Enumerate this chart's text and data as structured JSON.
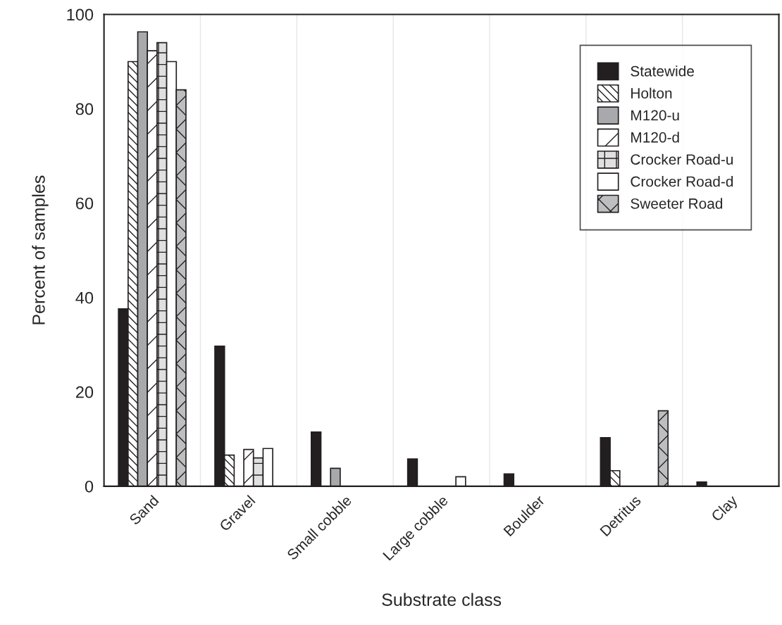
{
  "chart_data": {
    "type": "bar",
    "xlabel": "Substrate class",
    "ylabel": "Percent of samples",
    "categories": [
      "Sand",
      "Gravel",
      "Small cobble",
      "Large cobble",
      "Boulder",
      "Detritus",
      "Clay"
    ],
    "series": [
      {
        "name": "Statewide",
        "color": "#231f20",
        "values": [
          37.6,
          29.7,
          11.5,
          5.8,
          2.6,
          10.3,
          0.9
        ]
      },
      {
        "name": "Holton",
        "color": "#ffffff",
        "values": [
          90,
          6.6,
          null,
          null,
          null,
          3.3,
          null
        ]
      },
      {
        "name": "M120-u",
        "color": "#a7a9ac",
        "values": [
          96.3,
          null,
          3.8,
          null,
          null,
          null,
          null
        ]
      },
      {
        "name": "M120-d",
        "color": "#ffffff",
        "values": [
          92.3,
          7.8,
          null,
          null,
          null,
          null,
          null
        ]
      },
      {
        "name": "Crocker Road-u",
        "color": "#e0e0e0",
        "values": [
          94,
          6,
          null,
          null,
          null,
          null,
          null
        ]
      },
      {
        "name": "Crocker Road-d",
        "color": "#ffffff",
        "values": [
          90,
          8,
          null,
          2,
          null,
          null,
          null
        ]
      },
      {
        "name": "Sweeter Road",
        "color": "#bcbec0",
        "values": [
          84,
          null,
          null,
          null,
          null,
          16,
          null
        ]
      }
    ],
    "ylim": [
      0,
      100
    ],
    "yticks": [
      0,
      20,
      40,
      60,
      80,
      100
    ],
    "grid": "x",
    "legend": "top right"
  }
}
